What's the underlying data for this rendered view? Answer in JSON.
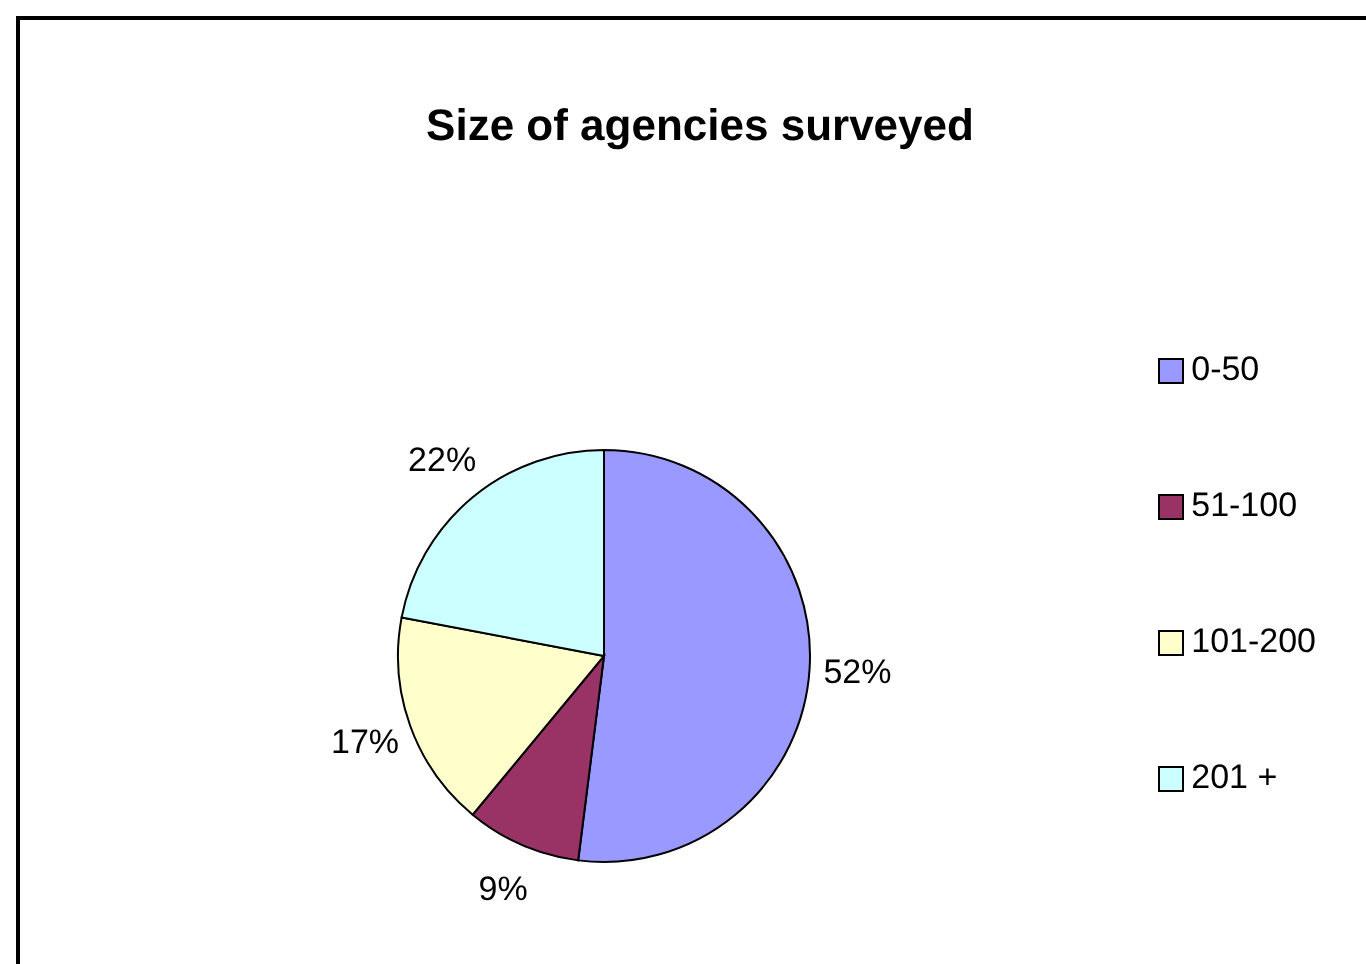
{
  "chart_data": {
    "type": "pie",
    "title": "Size of agencies surveyed",
    "categories": [
      "0-50",
      "51-100",
      "101-200",
      "201 +"
    ],
    "values": [
      52,
      9,
      17,
      22
    ],
    "colors": [
      "#9999ff",
      "#993366",
      "#ffffcc",
      "#ccffff"
    ],
    "value_labels": [
      "52%",
      "9%",
      "17%",
      "22%"
    ],
    "legend": "right"
  }
}
